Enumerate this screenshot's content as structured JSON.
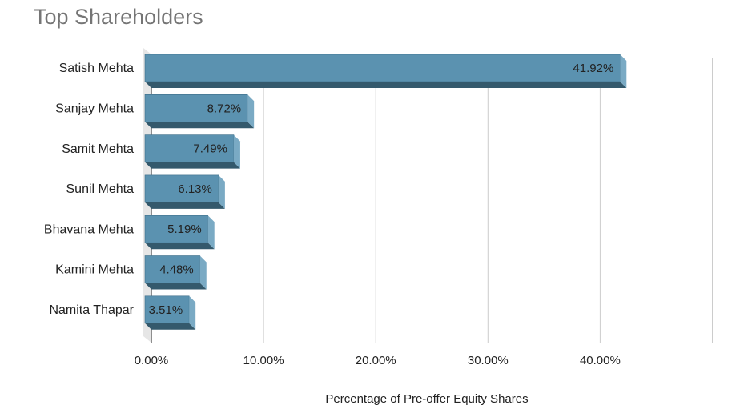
{
  "chart_data": {
    "type": "bar",
    "orientation": "horizontal",
    "title": "Top Shareholders",
    "xlabel": "Percentage of Pre-offer Equity Shares",
    "ylabel": "",
    "categories": [
      "Satish Mehta",
      "Sanjay Mehta",
      "Samit Mehta",
      "Sunil Mehta",
      "Bhavana Mehta",
      "Kamini Mehta",
      "Namita Thapar"
    ],
    "values": [
      41.92,
      8.72,
      7.49,
      6.13,
      5.19,
      4.48,
      3.51
    ],
    "data_labels": [
      "41.92%",
      "8.72%",
      "7.49%",
      "6.13%",
      "5.19%",
      "4.48%",
      "3.51%"
    ],
    "xlim": [
      0,
      50
    ],
    "xticks": [
      0,
      10,
      20,
      30,
      40
    ],
    "xtick_labels": [
      "0.00%",
      "10.00%",
      "20.00%",
      "30.00%",
      "40.00%"
    ],
    "grid": true,
    "legend": "none",
    "colors": {
      "bar_front": "#5b92b0",
      "bar_side": "#7aaac4",
      "bar_bottom": "#34596c",
      "bar_stroke": "#3f6f89",
      "grid": "#cccccc",
      "wall": "#e6e6e6",
      "title": "#757575",
      "text": "#222222",
      "outside_label": "#6a9bb8"
    }
  }
}
